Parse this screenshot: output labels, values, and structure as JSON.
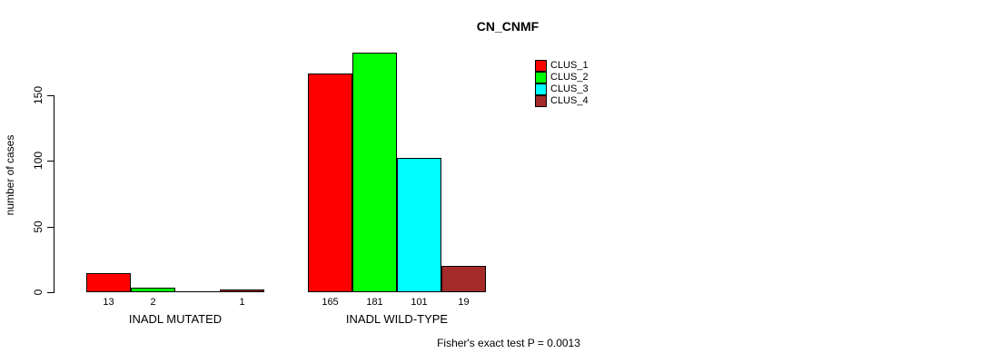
{
  "chart_data": {
    "type": "bar",
    "title": "CN_CNMF",
    "xlabel": "",
    "ylabel": "number of cases",
    "yticks": [
      0,
      50,
      100,
      150
    ],
    "ylim": [
      0,
      185
    ],
    "grid": false,
    "legend_position": "top-right-inside",
    "categories": [
      "INADL MUTATED",
      "INADL WILD-TYPE"
    ],
    "series": [
      {
        "name": "CLUS_1",
        "color": "#FF0000",
        "values": [
          13,
          165
        ]
      },
      {
        "name": "CLUS_2",
        "color": "#00FF00",
        "values": [
          2,
          181
        ]
      },
      {
        "name": "CLUS_3",
        "color": "#00FFFF",
        "values": [
          0,
          101
        ]
      },
      {
        "name": "CLUS_4",
        "color": "#A52A2A",
        "values": [
          1,
          19
        ]
      }
    ],
    "bar_value_labels": [
      [
        "13",
        "2",
        "",
        "1"
      ],
      [
        "165",
        "181",
        "101",
        "19"
      ]
    ],
    "annotation": "Fisher's exact test P = 0.0013",
    "colors": {
      "background": "#FFFFFF",
      "axis": "#000000",
      "text": "#000000"
    }
  }
}
